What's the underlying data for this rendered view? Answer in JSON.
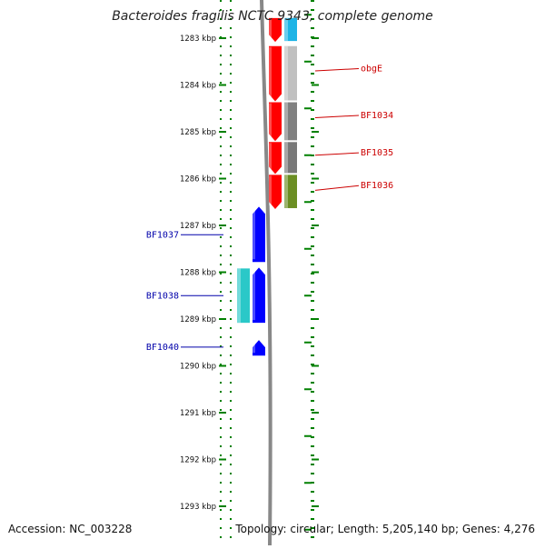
{
  "title": "Bacteroides fragilis NCTC 9343, complete genome",
  "footer": {
    "accession": "Accession: NC_003228",
    "summary": "Topology: circular; Length: 5,205,140 bp; Genes: 4,276"
  },
  "scale": {
    "unit": "kbp",
    "ticks": [
      1283,
      1284,
      1285,
      1286,
      1287,
      1288,
      1289,
      1290,
      1291,
      1292,
      1293
    ],
    "tick_labels": [
      "1283 kbp",
      "1284 kbp",
      "1285 kbp",
      "1286 kbp",
      "1287 kbp",
      "1288 kbp",
      "1289 kbp",
      "1290 kbp",
      "1291 kbp",
      "1292 kbp",
      "1293 kbp"
    ]
  },
  "colors": {
    "tick": "#008000",
    "forward_label": "#cc0000",
    "reverse_label": "#0000aa",
    "backbone": "#888888",
    "forward_gene": "#ff0000",
    "reverse_gene": "#0000ff"
  },
  "genes": [
    {
      "strand": "forward",
      "start_kbp": 1282.55,
      "end_kbp": 1283.08,
      "color": "#ff0000"
    },
    {
      "strand": "forward",
      "start_kbp": 1283.15,
      "end_kbp": 1284.35,
      "color": "#ff0000"
    },
    {
      "strand": "forward",
      "start_kbp": 1284.35,
      "end_kbp": 1285.2,
      "color": "#ff0000"
    },
    {
      "strand": "forward",
      "start_kbp": 1285.2,
      "end_kbp": 1285.9,
      "color": "#ff0000"
    },
    {
      "strand": "forward",
      "start_kbp": 1285.9,
      "end_kbp": 1286.65,
      "color": "#ff0000"
    },
    {
      "strand": "reverse",
      "start_kbp": 1286.6,
      "end_kbp": 1287.8,
      "color": "#0000ff"
    },
    {
      "strand": "reverse",
      "start_kbp": 1287.9,
      "end_kbp": 1289.1,
      "color": "#0000ff"
    },
    {
      "strand": "reverse",
      "start_kbp": 1289.45,
      "end_kbp": 1289.8,
      "color": "#0000ff"
    }
  ],
  "cog_boxes": [
    {
      "strand": "forward",
      "start_kbp": 1282.55,
      "end_kbp": 1283.08,
      "color": "#1eb4e6"
    },
    {
      "strand": "forward",
      "start_kbp": 1283.15,
      "end_kbp": 1284.35,
      "color": "#c0c0c0"
    },
    {
      "strand": "forward",
      "start_kbp": 1284.35,
      "end_kbp": 1285.2,
      "color": "#808080"
    },
    {
      "strand": "forward",
      "start_kbp": 1285.2,
      "end_kbp": 1285.9,
      "color": "#787878"
    },
    {
      "strand": "forward",
      "start_kbp": 1285.9,
      "end_kbp": 1286.65,
      "color": "#6b8e23"
    },
    {
      "strand": "reverse",
      "start_kbp": 1287.9,
      "end_kbp": 1289.1,
      "color": "#2ac8c8"
    }
  ],
  "labels": [
    {
      "text": "obgE",
      "strand": "forward",
      "at_kbp": 1283.7,
      "y_kbp": 1283.65
    },
    {
      "text": "BF1034",
      "strand": "forward",
      "at_kbp": 1284.7,
      "y_kbp": 1284.65
    },
    {
      "text": "BF1035",
      "strand": "forward",
      "at_kbp": 1285.5,
      "y_kbp": 1285.45
    },
    {
      "text": "BF1036",
      "strand": "forward",
      "at_kbp": 1286.25,
      "y_kbp": 1286.15
    },
    {
      "text": "BF1037",
      "strand": "reverse",
      "at_kbp": 1287.2,
      "y_kbp": 1287.2
    },
    {
      "text": "BF1038",
      "strand": "reverse",
      "at_kbp": 1288.5,
      "y_kbp": 1288.5
    },
    {
      "text": "BF1040",
      "strand": "reverse",
      "at_kbp": 1289.6,
      "y_kbp": 1289.6
    }
  ]
}
